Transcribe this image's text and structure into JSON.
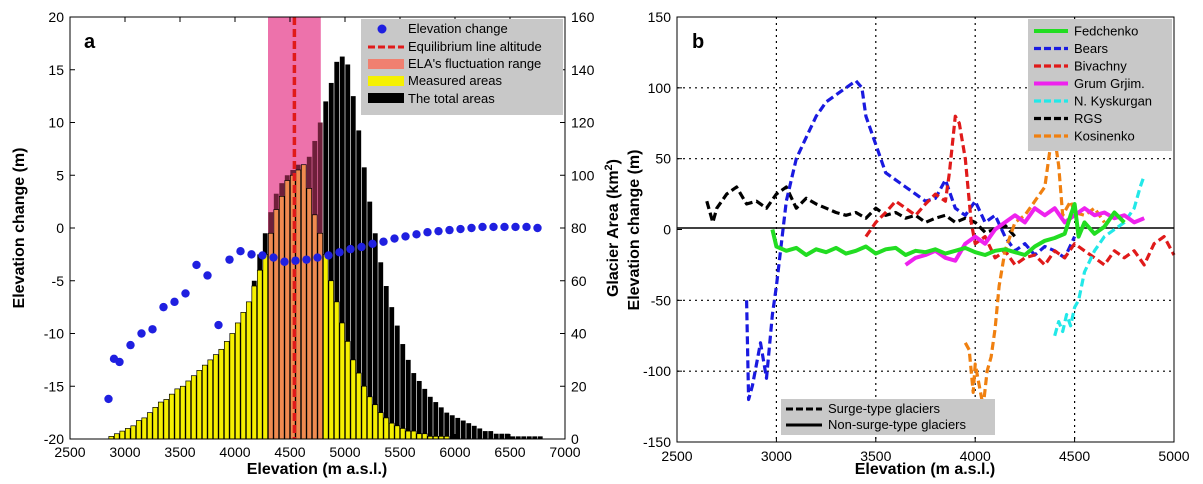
{
  "chart_data": [
    {
      "type": "bar",
      "panel_label": "a",
      "xlabel": "Elevation (m a.s.l.)",
      "ylabel_left": "Elevation change (m)",
      "ylabel_right": "Glacier Area (km",
      "ylabel_right_sup": "2",
      "ylabel_right_close": ")",
      "xlim": [
        2500,
        7000
      ],
      "ylim_left": [
        -20,
        20
      ],
      "ylim_right": [
        0,
        160
      ],
      "xticks": [
        2500,
        3000,
        3500,
        4000,
        4500,
        5000,
        5500,
        6000,
        6500,
        7000
      ],
      "yticks_left": [
        -20,
        -15,
        -10,
        -5,
        0,
        5,
        10,
        15,
        20
      ],
      "yticks_right": [
        0,
        20,
        40,
        60,
        80,
        100,
        120,
        140,
        160
      ],
      "legend_position": "top-right",
      "legend": [
        {
          "label": "Elevation change",
          "color": "#1f1fe0",
          "marker": "dot"
        },
        {
          "label": "Equilibrium line altitude",
          "color": "#e01a1a",
          "marker": "dashed-line"
        },
        {
          "label": "ELA's fluctuation range",
          "color": "#f08070",
          "marker": "patch"
        },
        {
          "label": "Measured areas",
          "color": "#f5f000",
          "marker": "patch"
        },
        {
          "label": "The total areas",
          "color": "#000000",
          "marker": "patch"
        }
      ],
      "ela": 4540,
      "ela_range": [
        4300,
        4780
      ],
      "bin_starts": [
        2850,
        2900,
        2950,
        3000,
        3050,
        3100,
        3150,
        3200,
        3250,
        3300,
        3350,
        3400,
        3450,
        3500,
        3550,
        3600,
        3650,
        3700,
        3750,
        3800,
        3850,
        3900,
        3950,
        4000,
        4050,
        4100,
        4150,
        4200,
        4250,
        4300,
        4350,
        4400,
        4450,
        4500,
        4550,
        4600,
        4650,
        4700,
        4750,
        4800,
        4850,
        4900,
        4950,
        5000,
        5050,
        5100,
        5150,
        5200,
        5250,
        5300,
        5350,
        5400,
        5450,
        5500,
        5550,
        5600,
        5650,
        5700,
        5750,
        5800,
        5850,
        5900,
        5950,
        6000,
        6050,
        6100,
        6150,
        6200,
        6250,
        6300,
        6350,
        6400,
        6450,
        6500,
        6550,
        6600,
        6650,
        6700,
        6750
      ],
      "total_areas": [
        1,
        2,
        3,
        4,
        5,
        7,
        8,
        10,
        12,
        14,
        15,
        17,
        19,
        20,
        22,
        24,
        26,
        28,
        30,
        32,
        34,
        37,
        40,
        44,
        48,
        52,
        60,
        70,
        78,
        86,
        93,
        97,
        100,
        102,
        104,
        104,
        107,
        113,
        120,
        128,
        135,
        143,
        145,
        142,
        130,
        117,
        103,
        90,
        78,
        67,
        58,
        50,
        43,
        36,
        30,
        25,
        22,
        19,
        16,
        14,
        12,
        10,
        9,
        8,
        7,
        6,
        5,
        4,
        3,
        3,
        2,
        2,
        2,
        1,
        1,
        1,
        1,
        1,
        1
      ],
      "measured_areas": [
        1,
        2,
        3,
        4,
        5,
        7,
        8,
        10,
        12,
        14,
        15,
        17,
        19,
        20,
        22,
        24,
        26,
        28,
        30,
        32,
        34,
        37,
        40,
        44,
        48,
        52,
        58,
        64,
        70,
        78,
        87,
        92,
        98,
        100,
        102,
        104,
        95,
        85,
        78,
        70,
        60,
        52,
        44,
        37,
        30,
        25,
        20,
        16,
        13,
        10,
        8,
        6,
        5,
        4,
        3,
        3,
        2,
        2,
        1,
        1,
        1,
        1,
        0,
        0,
        0,
        0,
        0,
        0,
        0,
        0,
        0,
        0,
        0,
        0,
        0,
        0,
        0,
        0,
        0
      ],
      "elevation_change_points": {
        "x": [
          2850,
          2900,
          2950,
          3050,
          3150,
          3250,
          3350,
          3450,
          3550,
          3650,
          3750,
          3850,
          3950,
          4050,
          4150,
          4250,
          4350,
          4450,
          4550,
          4650,
          4750,
          4850,
          4950,
          5050,
          5150,
          5250,
          5350,
          5450,
          5550,
          5650,
          5750,
          5850,
          5950,
          6050,
          6150,
          6250,
          6350,
          6450,
          6550,
          6650,
          6750
        ],
        "y": [
          -16.2,
          -12.4,
          -12.7,
          -11.1,
          -10.0,
          -9.6,
          -7.5,
          -7.0,
          -6.2,
          -3.5,
          -4.5,
          -9.2,
          -3.0,
          -2.2,
          -2.5,
          -2.6,
          -2.8,
          -3.2,
          -3.1,
          -3.0,
          -2.8,
          -2.6,
          -2.3,
          -2.0,
          -1.8,
          -1.5,
          -1.3,
          -1.0,
          -0.8,
          -0.6,
          -0.4,
          -0.3,
          -0.2,
          -0.1,
          0.0,
          0.1,
          0.1,
          0.1,
          0.1,
          0.1,
          0.0
        ]
      }
    },
    {
      "type": "line",
      "panel_label": "b",
      "xlabel": "Elevation (m a.s.l.)",
      "ylabel": "Elevation change (m)",
      "xlim": [
        2500,
        5000
      ],
      "ylim": [
        -150,
        150
      ],
      "xticks": [
        2500,
        3000,
        3500,
        4000,
        4500,
        5000
      ],
      "yticks": [
        -150,
        -100,
        -50,
        0,
        50,
        100,
        150
      ],
      "grid": "dotted",
      "legend_position": "top-right",
      "style_legend_position": "bottom-left",
      "style_legend": [
        {
          "label": "Surge-type glaciers",
          "style": "dashed"
        },
        {
          "label": "Non-surge-type glaciers",
          "style": "solid"
        }
      ],
      "series": [
        {
          "name": "Fedchenko",
          "color": "#22dd22",
          "style": "solid",
          "x": [
            2980,
            3000,
            3050,
            3100,
            3150,
            3200,
            3250,
            3300,
            3350,
            3400,
            3450,
            3500,
            3550,
            3600,
            3650,
            3700,
            3750,
            3800,
            3850,
            3900,
            3950,
            4000,
            4050,
            4100,
            4150,
            4200,
            4250,
            4300,
            4350,
            4400,
            4450,
            4480,
            4500,
            4520,
            4550,
            4600,
            4650,
            4700,
            4750
          ],
          "y": [
            0,
            -12,
            -15,
            -13,
            -18,
            -14,
            -16,
            -13,
            -17,
            -15,
            -12,
            -17,
            -14,
            -13,
            -18,
            -15,
            -16,
            -14,
            -17,
            -15,
            -13,
            -16,
            -18,
            -15,
            -14,
            -16,
            -18,
            -12,
            -8,
            -6,
            -3,
            10,
            18,
            -5,
            5,
            -3,
            2,
            12,
            5
          ]
        },
        {
          "name": "Bears",
          "color": "#1a1ae0",
          "style": "dashed",
          "x": [
            2850,
            2860,
            2880,
            2900,
            2920,
            2950,
            2980,
            3000,
            3050,
            3100,
            3150,
            3200,
            3250,
            3300,
            3350,
            3400,
            3430,
            3450,
            3500,
            3550,
            3600,
            3650,
            3700,
            3750,
            3800,
            3850,
            3900,
            3950,
            4000,
            4050,
            4100,
            4150,
            4200,
            4250,
            4300,
            4350,
            4400,
            4450,
            4500
          ],
          "y": [
            -50,
            -120,
            -110,
            -95,
            -80,
            -105,
            -60,
            -40,
            20,
            50,
            65,
            80,
            90,
            95,
            100,
            105,
            100,
            80,
            60,
            40,
            35,
            30,
            25,
            20,
            22,
            35,
            15,
            10,
            20,
            5,
            10,
            -5,
            -15,
            -10,
            -18,
            -12,
            -15,
            -20,
            -5
          ]
        },
        {
          "name": "Bivachny",
          "color": "#e01a1a",
          "style": "dashed",
          "x": [
            3450,
            3500,
            3550,
            3600,
            3650,
            3700,
            3750,
            3800,
            3850,
            3870,
            3900,
            3920,
            3950,
            3980,
            4000,
            4050,
            4100,
            4150,
            4200,
            4250,
            4300,
            4350,
            4400,
            4450,
            4500,
            4550,
            4600,
            4650,
            4700,
            4750,
            4800,
            4850,
            4900,
            4950,
            5000
          ],
          "y": [
            -5,
            5,
            12,
            20,
            15,
            10,
            18,
            25,
            20,
            40,
            80,
            75,
            50,
            5,
            -10,
            -5,
            -20,
            -15,
            -25,
            -20,
            -18,
            -25,
            -15,
            -20,
            -10,
            -15,
            -20,
            -25,
            -15,
            -20,
            -15,
            -25,
            -10,
            -5,
            -18
          ]
        },
        {
          "name": "Grum Grjim.",
          "color": "#ee22ee",
          "style": "solid",
          "x": [
            3650,
            3700,
            3750,
            3800,
            3850,
            3900,
            3950,
            4000,
            4050,
            4100,
            4150,
            4200,
            4250,
            4300,
            4350,
            4400,
            4450,
            4500,
            4550,
            4600,
            4650,
            4700,
            4750,
            4800,
            4850
          ],
          "y": [
            -25,
            -20,
            -18,
            -15,
            -20,
            -22,
            -10,
            -5,
            -10,
            0,
            5,
            10,
            5,
            15,
            10,
            15,
            5,
            10,
            15,
            10,
            12,
            8,
            10,
            5,
            8
          ]
        },
        {
          "name": "N. Kyskurgan",
          "color": "#22e8e8",
          "style": "dashed",
          "x": [
            4400,
            4420,
            4440,
            4460,
            4480,
            4500,
            4520,
            4550,
            4600,
            4650,
            4700,
            4750,
            4800,
            4830,
            4850
          ],
          "y": [
            -75,
            -65,
            -72,
            -60,
            -68,
            -55,
            -50,
            -30,
            -15,
            -5,
            0,
            5,
            15,
            30,
            38
          ]
        },
        {
          "name": "RGS",
          "color": "#000000",
          "style": "dashed",
          "x": [
            2650,
            2680,
            2700,
            2750,
            2800,
            2850,
            2900,
            2950,
            3000,
            3050,
            3100,
            3150,
            3200,
            3250,
            3300,
            3350,
            3400,
            3450,
            3500,
            3550,
            3600,
            3650,
            3700,
            3750,
            3800,
            3850,
            3900,
            3950,
            4000,
            4050,
            4100,
            4150,
            4200
          ],
          "y": [
            20,
            5,
            15,
            25,
            30,
            18,
            20,
            15,
            25,
            30,
            15,
            22,
            18,
            15,
            12,
            10,
            12,
            8,
            15,
            10,
            12,
            8,
            10,
            5,
            8,
            10,
            5,
            8,
            5,
            -2,
            0,
            3,
            -5
          ]
        },
        {
          "name": "Kosinenko",
          "color": "#f08010",
          "style": "dashed",
          "x": [
            3950,
            3970,
            3990,
            4000,
            4020,
            4040,
            4060,
            4080,
            4100,
            4120,
            4150,
            4200,
            4250,
            4300,
            4350,
            4380,
            4400,
            4420,
            4440,
            4460,
            4480,
            4500,
            4550,
            4600,
            4650
          ],
          "y": [
            -80,
            -85,
            -115,
            -95,
            -110,
            -125,
            -100,
            -90,
            -70,
            -40,
            -15,
            5,
            10,
            20,
            30,
            60,
            65,
            45,
            10,
            15,
            20,
            12,
            10,
            15,
            5
          ]
        }
      ]
    }
  ]
}
